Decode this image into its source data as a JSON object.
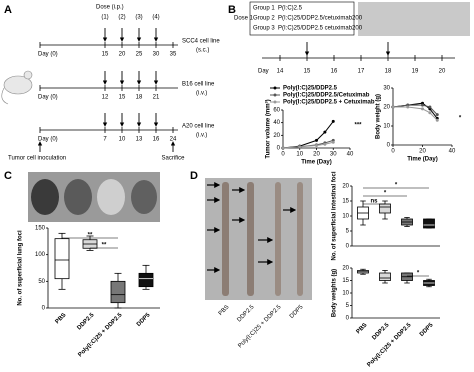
{
  "panels": {
    "A": {
      "label": "A",
      "dose_label": "Dose (i.p.)",
      "doses": [
        "(1)",
        "(2)",
        "(3)",
        "(4)"
      ],
      "timelines": [
        {
          "start": "Day (0)",
          "days": [
            "15",
            "20",
            "25",
            "30",
            "35"
          ],
          "name": "SCC4 cell line",
          "route": "(s.c.)"
        },
        {
          "start": "Day (0)",
          "days": [
            "12",
            "15",
            "18",
            "21"
          ],
          "name": "B16 cell line",
          "route": "(i.v.)"
        },
        {
          "start": "Day (0)",
          "days": [
            "7",
            "10",
            "13",
            "16",
            "24"
          ],
          "name": "A20 cell line",
          "route": "(i.v.)"
        }
      ],
      "inoculation": "Tumor cell inoculation",
      "sacrifice": "Sacrifice"
    },
    "B": {
      "label": "B",
      "dose": "Dose 1",
      "groups": [
        {
          "name": "Group 1",
          "treatment": "P(I:C)2.5"
        },
        {
          "name": "Group 2",
          "treatment": "P(I:C)25/DDP2.5/cetuximab200"
        },
        {
          "name": "Group 3",
          "treatment": "P(I:C)25/DDP2.5 cetuximab200"
        }
      ],
      "timeline_label": "Day",
      "days": [
        "14",
        "15",
        "16",
        "17",
        "18",
        "19",
        "20"
      ]
    },
    "C": {
      "label": "C"
    },
    "D": {
      "label": "D",
      "photo_labels": [
        "PBS",
        "DDP2.5",
        "Poly(I:C)25 + DDP2.5",
        "DDP5"
      ]
    }
  },
  "chart_data": [
    {
      "type": "line",
      "y_label": "Tumor volume (mm³)",
      "x_label": "Time (Day)",
      "x": [
        0,
        10,
        20,
        25,
        30
      ],
      "xlim": [
        0,
        40
      ],
      "xticks": [
        0,
        10,
        20,
        30,
        40
      ],
      "ylim": [
        0,
        60
      ],
      "yticks": [
        0,
        20,
        40,
        60
      ],
      "series": [
        {
          "name": "Poly(I:C)25/DDP2.5",
          "color": "#000000",
          "values": [
            0,
            3,
            12,
            25,
            42
          ]
        },
        {
          "name": "Poly(I:C)25/DDP2.5/Cetuximab",
          "color": "#555555",
          "values": [
            0,
            2,
            5,
            8,
            12
          ]
        },
        {
          "name": "Poly(I:C)25/DDP2.5 + Cetuximab",
          "color": "#999999",
          "values": [
            0,
            2,
            4,
            6,
            9
          ]
        }
      ],
      "annotations": [
        "***"
      ]
    },
    {
      "type": "line",
      "y_label": "Body weight (g)",
      "x_label": "Time (Day)",
      "x": [
        0,
        10,
        20,
        25,
        30
      ],
      "xlim": [
        0,
        40
      ],
      "xticks": [
        0,
        20,
        40
      ],
      "ylim": [
        0,
        30
      ],
      "yticks": [
        0,
        10,
        20,
        30
      ],
      "series": [
        {
          "color": "#000000",
          "values": [
            20,
            21,
            22,
            19,
            14
          ]
        },
        {
          "color": "#555555",
          "values": [
            20,
            21,
            21,
            20,
            16
          ]
        },
        {
          "color": "#999999",
          "values": [
            20,
            20,
            19,
            17,
            13
          ]
        }
      ],
      "annotations": [
        "*"
      ]
    },
    {
      "type": "box",
      "y_label": "No. of superficial lung foci",
      "categories": [
        "PBS",
        "DDP2.5",
        "Poly(I:C)25 + DDP2.5",
        "DDP5"
      ],
      "ylim": [
        0,
        150
      ],
      "yticks": [
        0,
        50,
        100,
        150
      ],
      "boxes": [
        {
          "min": 35,
          "q1": 55,
          "median": 90,
          "q3": 130,
          "max": 140,
          "color": "#ffffff"
        },
        {
          "min": 108,
          "q1": 112,
          "median": 120,
          "q3": 128,
          "max": 135,
          "color": "#d9d9d9"
        },
        {
          "min": 0,
          "q1": 10,
          "median": 25,
          "q3": 50,
          "max": 65,
          "color": "#777777"
        },
        {
          "min": 35,
          "q1": 40,
          "median": 55,
          "q3": 65,
          "max": 80,
          "color": "#111111"
        }
      ],
      "annotations": [
        "**",
        "**"
      ]
    },
    {
      "type": "box",
      "y_label": "No. of superficial intestinal foci",
      "ylim": [
        0,
        20
      ],
      "yticks": [
        0,
        5,
        10,
        15,
        20
      ],
      "boxes": [
        {
          "min": 7,
          "q1": 9,
          "median": 11,
          "q3": 13,
          "max": 15,
          "color": "#ffffff"
        },
        {
          "min": 9,
          "q1": 11,
          "median": 13,
          "q3": 14,
          "max": 15,
          "color": "#d9d9d9"
        },
        {
          "min": 6.5,
          "q1": 7,
          "median": 8,
          "q3": 9,
          "max": 9.5,
          "color": "#777777"
        },
        {
          "min": 6,
          "q1": 6,
          "median": 7,
          "q3": 9,
          "max": 9,
          "color": "#111111"
        }
      ],
      "annotations": [
        "ns",
        "*",
        "*"
      ]
    },
    {
      "type": "box",
      "y_label": "Body weights (g)",
      "categories": [
        "PBS",
        "DDP2.5",
        "Poly(I:C)25 + DDP2.5",
        "DDP5"
      ],
      "ylim": [
        0,
        20
      ],
      "yticks": [
        0,
        5,
        10,
        15,
        20
      ],
      "boxes": [
        {
          "min": 17.5,
          "q1": 18,
          "median": 18.5,
          "q3": 19,
          "max": 19.5,
          "color": "#ffffff"
        },
        {
          "min": 14,
          "q1": 15,
          "median": 16,
          "q3": 18,
          "max": 19,
          "color": "#d9d9d9"
        },
        {
          "min": 14,
          "q1": 15,
          "median": 16.5,
          "q3": 18,
          "max": 18,
          "color": "#777777"
        },
        {
          "min": 12.5,
          "q1": 13,
          "median": 14,
          "q3": 15,
          "max": 15.5,
          "color": "#111111"
        }
      ],
      "annotations": [
        "*"
      ]
    }
  ]
}
